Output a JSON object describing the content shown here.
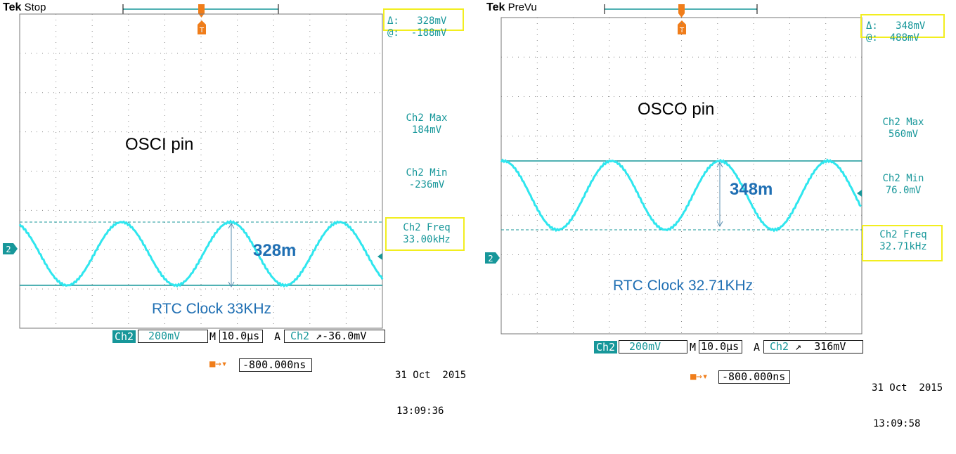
{
  "left": {
    "brand": "Tek",
    "mode": "Stop",
    "cursor_delta_label": "Δ:",
    "cursor_delta_value": "328mV",
    "cursor_at_label": "@:",
    "cursor_at_value": "-188mV",
    "max_label": "Ch2 Max",
    "max_value": "184mV",
    "min_label": "Ch2 Min",
    "min_value": "-236mV",
    "freq_label": "Ch2 Freq",
    "freq_value": "33.00kHz",
    "channel": "Ch2",
    "volts_div": "200mV",
    "time_prefix": "M",
    "time_div": "10.0µs",
    "trig_prefix": "A",
    "trig_channel": "Ch2",
    "trig_level": "-36.0mV",
    "trig_offset": "-800.000ns",
    "date": "31 Oct  2015",
    "time": "13:09:36",
    "pin_label": "OSCI pin",
    "amp_label": "328m",
    "clock_label": "RTC Clock 33KHz",
    "channel_marker": "2"
  },
  "right": {
    "brand": "Tek",
    "mode": "PreVu",
    "cursor_delta_label": "Δ:",
    "cursor_delta_value": "348mV",
    "cursor_at_label": "@:",
    "cursor_at_value": "488mV",
    "max_label": "Ch2 Max",
    "max_value": "560mV",
    "min_label": "Ch2 Min",
    "min_value": "76.0mV",
    "freq_label": "Ch2 Freq",
    "freq_value": "32.71kHz",
    "channel": "Ch2",
    "volts_div": "200mV",
    "time_prefix": "M",
    "time_div": "10.0µs",
    "trig_prefix": "A",
    "trig_channel": "Ch2",
    "trig_level": "316mV",
    "trig_offset": "-800.000ns",
    "date": "31 Oct  2015",
    "time": "13:09:58",
    "pin_label": "OSCO pin",
    "amp_label": "348m",
    "clock_label": "RTC Clock 32.71KHz",
    "channel_marker": "2"
  },
  "colors": {
    "trace": "#2fe6ee",
    "cursor": "#17979a",
    "highlight_box": "#f2ee1f",
    "annotation": "#1f6fb3",
    "trigger": "#f07d1a"
  }
}
